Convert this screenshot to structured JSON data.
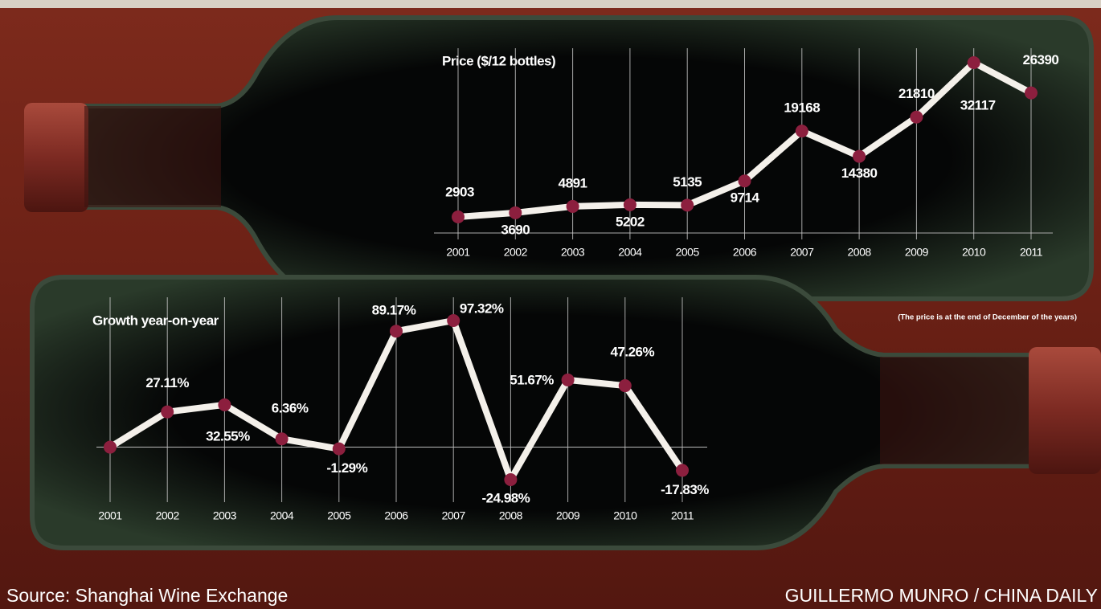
{
  "chart_data": [
    {
      "type": "line",
      "title": "Price ($/12 bottles)",
      "note": "(The price is at the end of December of the years)",
      "categories": [
        "2001",
        "2002",
        "2003",
        "2004",
        "2005",
        "2006",
        "2007",
        "2008",
        "2009",
        "2010",
        "2011"
      ],
      "values": [
        2903,
        3690,
        4891,
        5202,
        5135,
        9714,
        19168,
        14380,
        21810,
        32117,
        26390
      ],
      "color": "#f4f0ea",
      "marker_color": "#8c1f3e",
      "grid": true
    },
    {
      "type": "line",
      "title": "Growth year-on-year",
      "categories": [
        "2001",
        "2002",
        "2003",
        "2004",
        "2005",
        "2006",
        "2007",
        "2008",
        "2009",
        "2010",
        "2011"
      ],
      "values": [
        0,
        27.11,
        32.55,
        6.36,
        -1.29,
        89.17,
        97.32,
        -24.98,
        51.67,
        47.26,
        -17.83
      ],
      "value_labels": [
        null,
        "27.11%",
        "32.55%",
        "6.36%",
        "-1.29%",
        "89.17%",
        "97.32%",
        "-24.98%",
        "51.67%",
        "47.26%",
        "-17.83%"
      ],
      "color": "#f4f0ea",
      "marker_color": "#8c1f3e",
      "grid": true,
      "zero_line": true
    }
  ],
  "source": "Source: Shanghai Wine Exchange",
  "credit": "GUILLERMO MUNRO / CHINA DAILY"
}
